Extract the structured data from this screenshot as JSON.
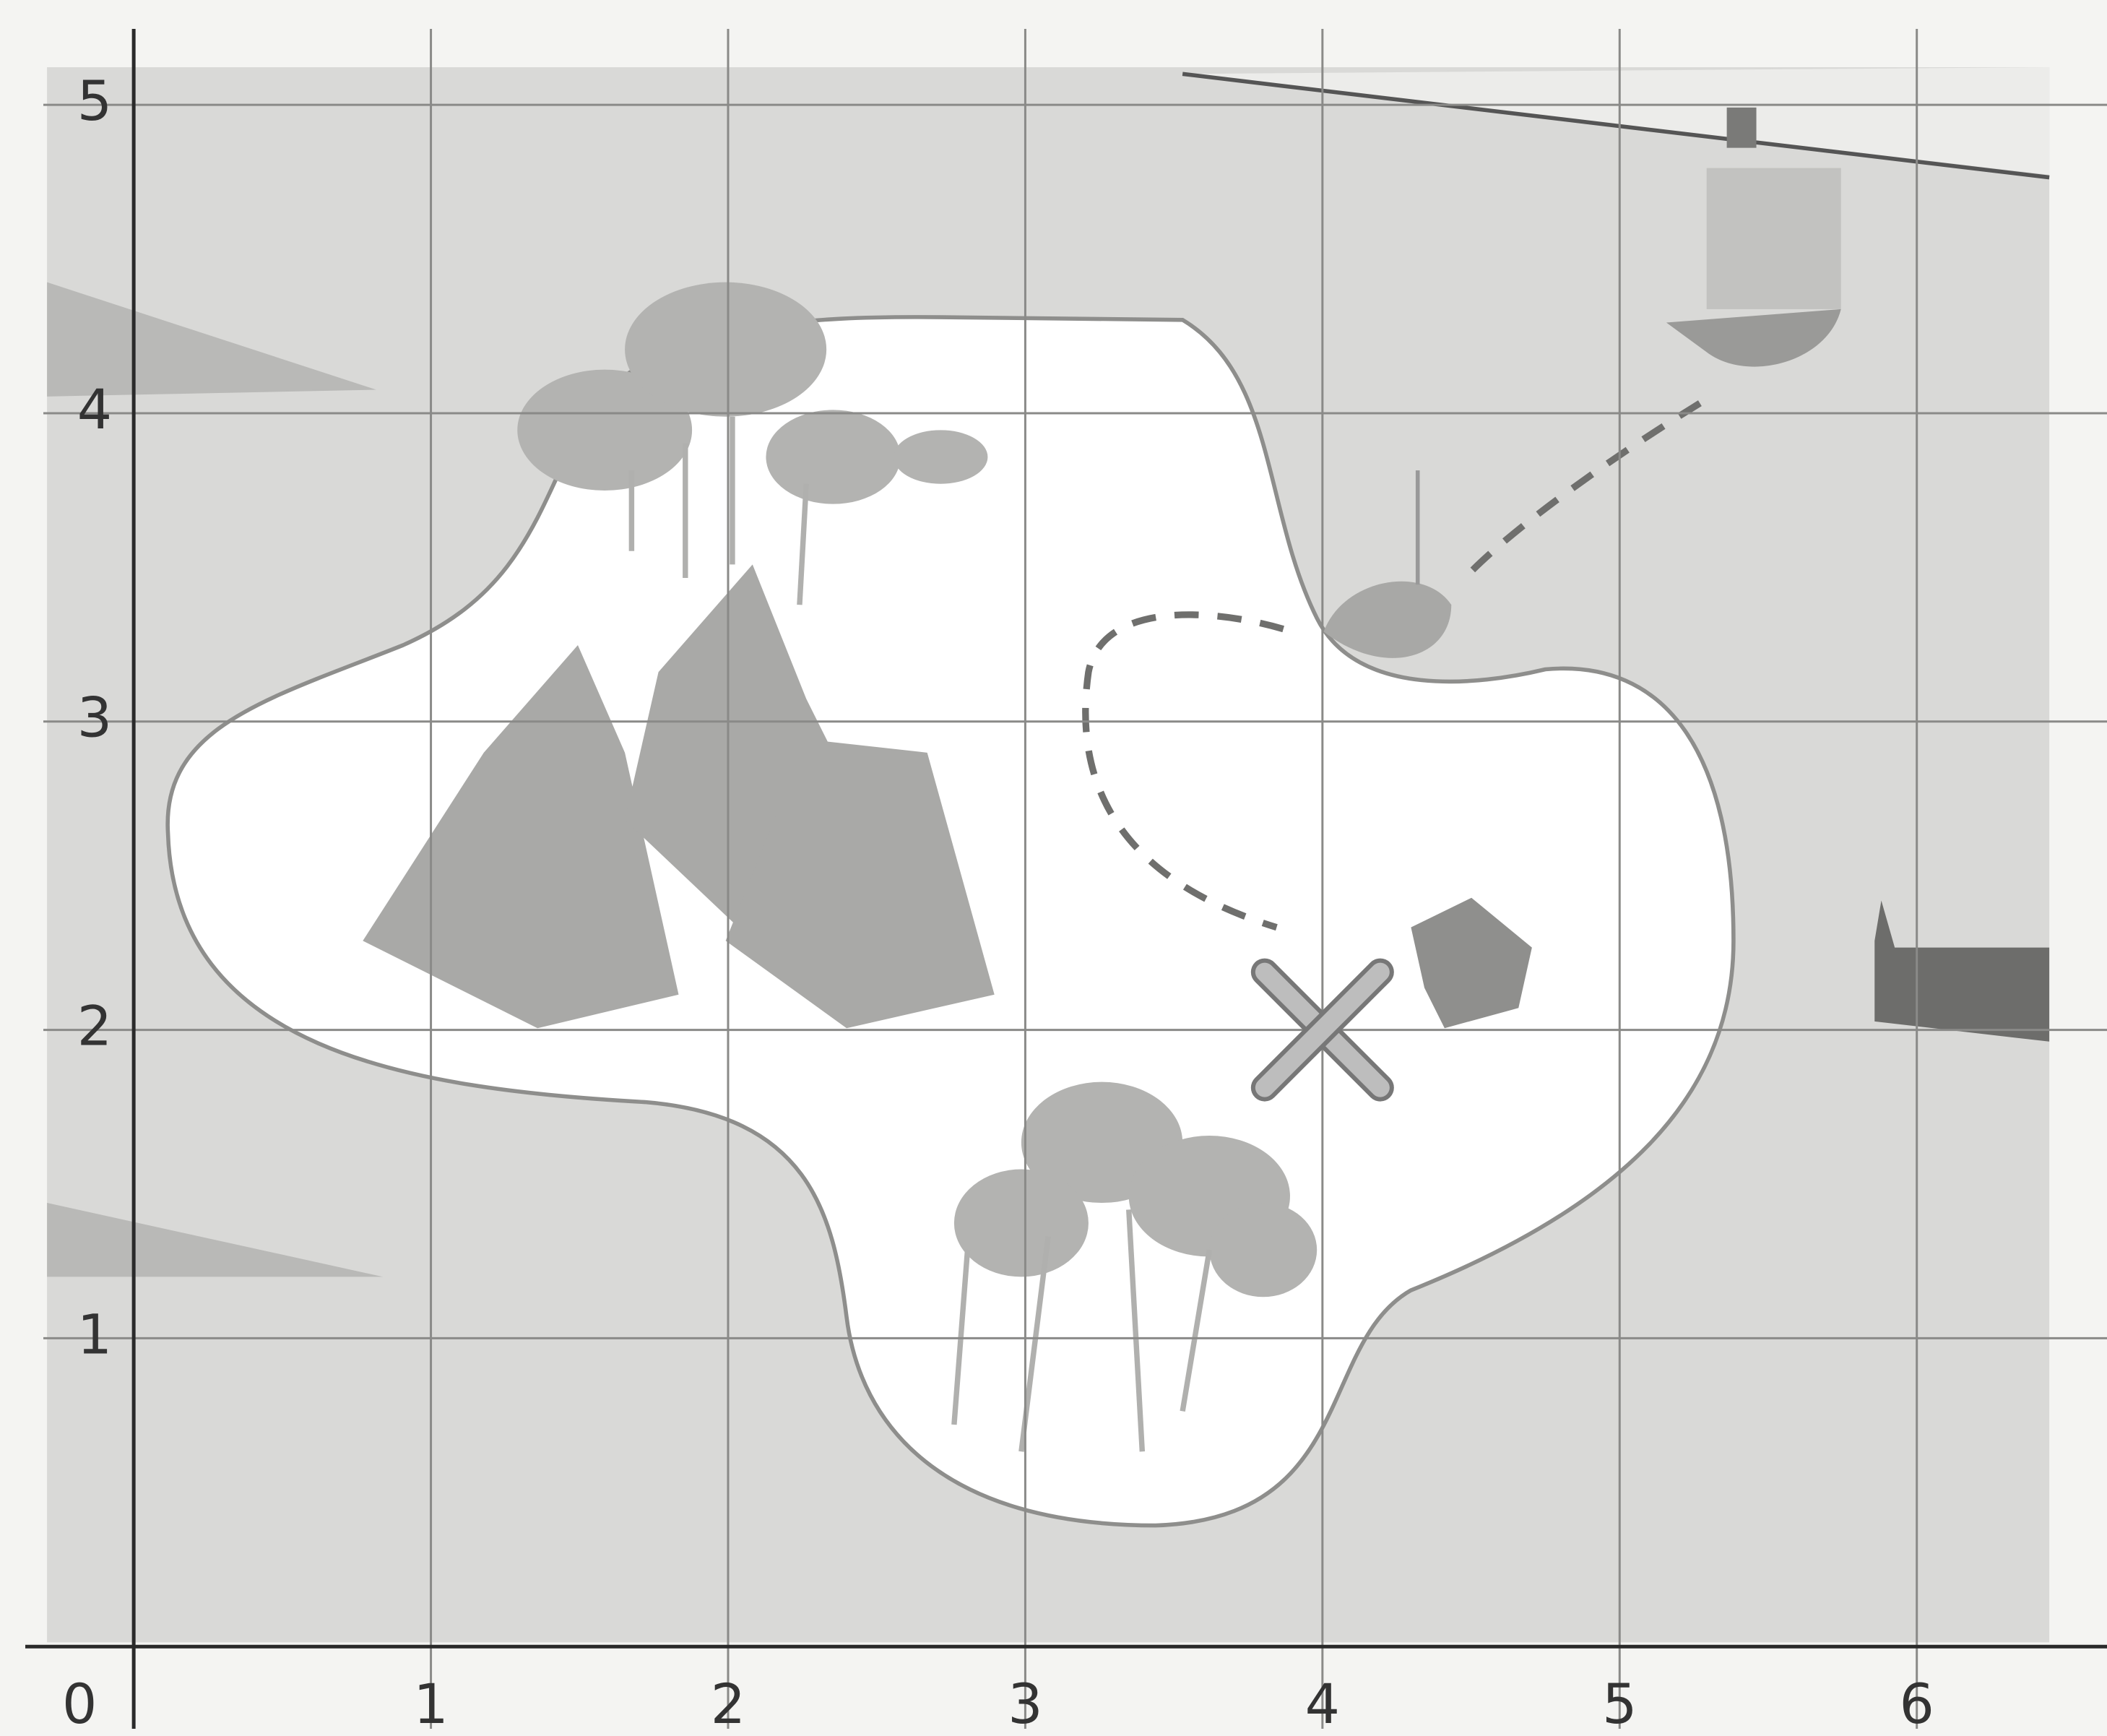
{
  "chart_data": {
    "type": "scatter",
    "x": [
      4
    ],
    "values": [
      2
    ],
    "color": "#bdbdbd",
    "xlim": [
      -0.45,
      6.64
    ],
    "ylim": [
      -0.29,
      5.34
    ],
    "xticks": [
      0,
      1,
      2,
      3,
      4,
      5,
      6
    ],
    "yticks": [
      1,
      2,
      3,
      4,
      5
    ],
    "grid": true
  }
}
